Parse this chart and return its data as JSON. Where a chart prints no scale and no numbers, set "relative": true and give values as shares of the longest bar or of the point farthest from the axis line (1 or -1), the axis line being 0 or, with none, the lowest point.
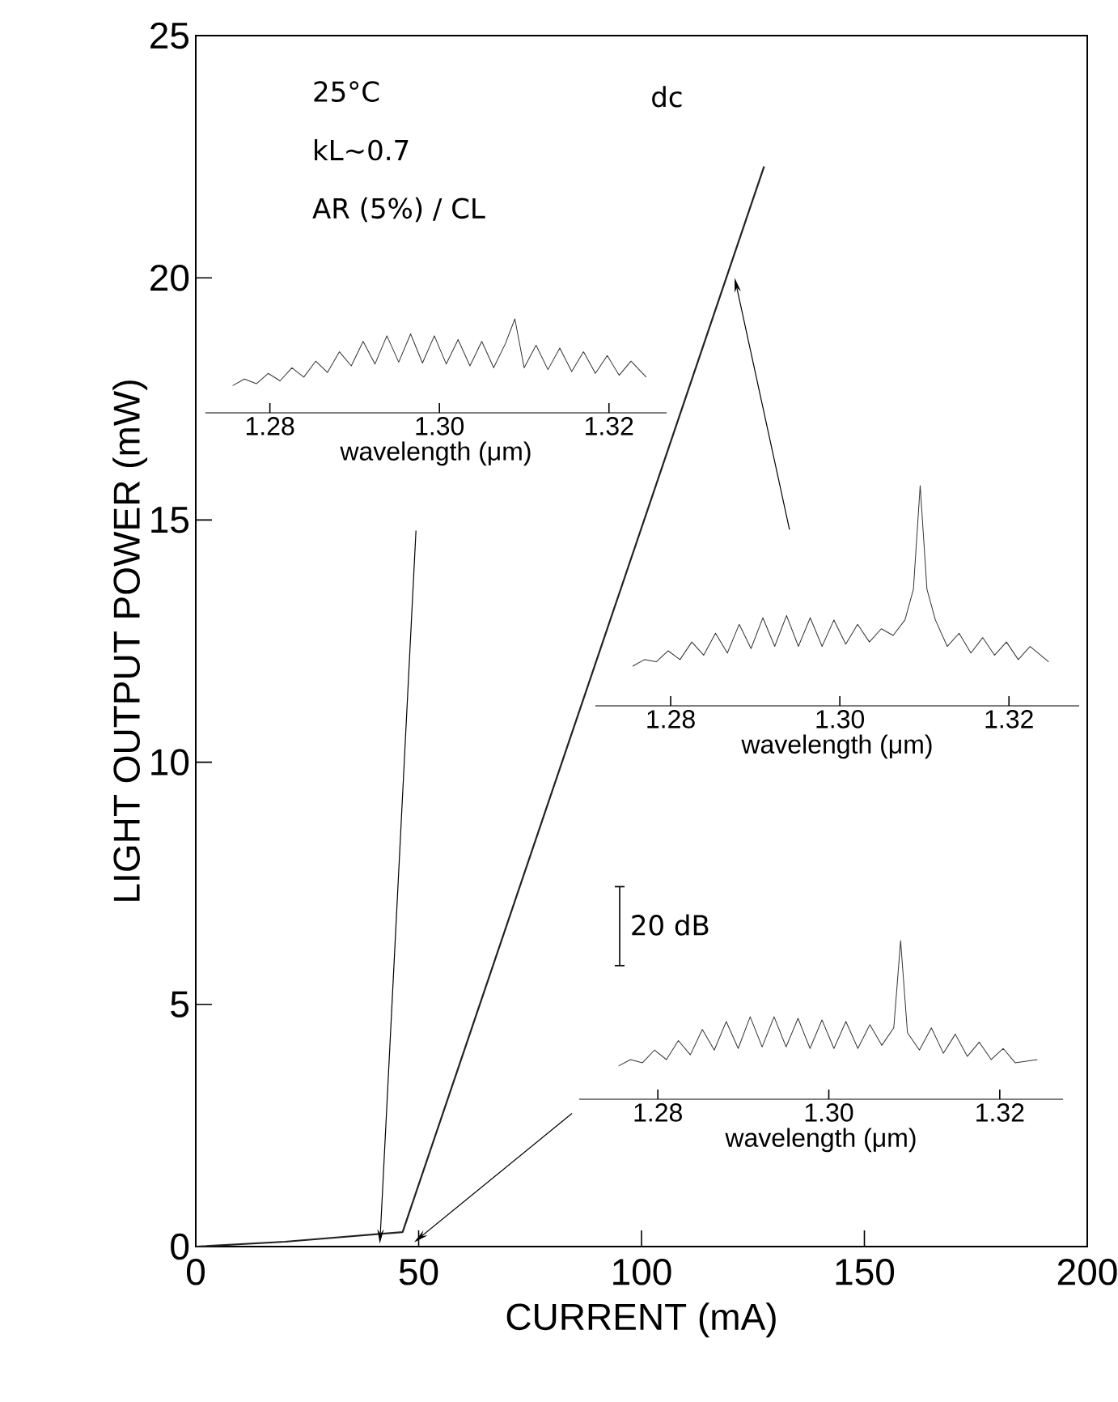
{
  "chart_data": [
    {
      "type": "line",
      "xlabel": "CURRENT  (mA)",
      "ylabel": "LIGHT OUTPUT POWER  (mW)",
      "color": "#222222",
      "x": [
        0,
        20,
        46.4,
        127.5
      ],
      "values": [
        0,
        0.1,
        0.3,
        22.3
      ],
      "xlim": [
        0,
        200
      ],
      "ylim": [
        0,
        25
      ],
      "xticks": [
        0,
        50,
        100,
        150,
        200
      ],
      "yticks": [
        0,
        5,
        10,
        15,
        20,
        25
      ],
      "annotations": [
        "25°C",
        "kL∼0.7",
        "AR  (5%) / CL",
        "dc",
        "20 dB"
      ]
    },
    {
      "type": "line",
      "relative": true,
      "xlabel": "wavelength  (μm)",
      "color": "#333333",
      "tick_labels": "x",
      "xlim": [
        1.2724,
        1.3268
      ],
      "xticks": [
        {
          "value": 1.28,
          "label": "1.28"
        },
        {
          "value": 1.3,
          "label": "1.30"
        },
        {
          "value": 1.32,
          "label": "1.32"
        }
      ],
      "x": [
        1.2756,
        1.277,
        1.2784,
        1.2798,
        1.2812,
        1.2826,
        1.284,
        1.2854,
        1.2868,
        1.2882,
        1.2896,
        1.291,
        1.2924,
        1.2938,
        1.2952,
        1.2966,
        1.298,
        1.2994,
        1.3008,
        1.3022,
        1.3036,
        1.305,
        1.3064,
        1.3078,
        1.3089,
        1.31,
        1.3114,
        1.3128,
        1.3142,
        1.3156,
        1.317,
        1.3184,
        1.3198,
        1.3212,
        1.3226,
        1.3244
      ],
      "values": [
        0.29,
        0.36,
        0.31,
        0.42,
        0.34,
        0.48,
        0.38,
        0.55,
        0.43,
        0.65,
        0.5,
        0.76,
        0.52,
        0.82,
        0.54,
        0.84,
        0.53,
        0.82,
        0.52,
        0.78,
        0.5,
        0.76,
        0.48,
        0.74,
        1,
        0.48,
        0.72,
        0.46,
        0.69,
        0.44,
        0.65,
        0.42,
        0.61,
        0.4,
        0.55,
        0.38
      ]
    },
    {
      "type": "line",
      "relative": true,
      "xlabel": "wavelength  (μm)",
      "color": "#333333",
      "tick_labels": "x",
      "xlim": [
        1.2711,
        1.3283
      ],
      "xticks": [
        {
          "value": 1.28,
          "label": "1.28"
        },
        {
          "value": 1.3,
          "label": "1.30"
        },
        {
          "value": 1.32,
          "label": "1.32"
        }
      ],
      "x": [
        1.2755,
        1.2769,
        1.2783,
        1.2797,
        1.2811,
        1.2825,
        1.2839,
        1.2853,
        1.2867,
        1.2881,
        1.2895,
        1.2909,
        1.2923,
        1.2937,
        1.2951,
        1.2965,
        1.2979,
        1.2993,
        1.3007,
        1.3021,
        1.3035,
        1.3049,
        1.3063,
        1.3077,
        1.3087,
        1.3095,
        1.3103,
        1.3113,
        1.3127,
        1.3141,
        1.3155,
        1.3169,
        1.3183,
        1.3197,
        1.3211,
        1.3225,
        1.3247
      ],
      "values": [
        0.18,
        0.21,
        0.2,
        0.25,
        0.21,
        0.29,
        0.23,
        0.33,
        0.24,
        0.37,
        0.26,
        0.4,
        0.27,
        0.41,
        0.27,
        0.4,
        0.27,
        0.39,
        0.28,
        0.37,
        0.29,
        0.35,
        0.32,
        0.39,
        0.53,
        1,
        0.53,
        0.39,
        0.27,
        0.33,
        0.24,
        0.31,
        0.23,
        0.29,
        0.21,
        0.27,
        0.2
      ]
    },
    {
      "type": "line",
      "relative": true,
      "xlabel": "wavelength  (μm)",
      "color": "#333333",
      "tick_labels": "x",
      "xlim": [
        1.2708,
        1.3274
      ],
      "xticks": [
        {
          "value": 1.28,
          "label": "1.28"
        },
        {
          "value": 1.3,
          "label": "1.30"
        },
        {
          "value": 1.32,
          "label": "1.32"
        }
      ],
      "x": [
        1.2754,
        1.2768,
        1.2782,
        1.2796,
        1.281,
        1.2824,
        1.2838,
        1.2852,
        1.2866,
        1.288,
        1.2894,
        1.2908,
        1.2922,
        1.2936,
        1.295,
        1.2964,
        1.2978,
        1.2992,
        1.3006,
        1.302,
        1.3034,
        1.3048,
        1.3062,
        1.3076,
        1.3084,
        1.3092,
        1.3106,
        1.312,
        1.3134,
        1.3148,
        1.3162,
        1.3176,
        1.319,
        1.3204,
        1.3218,
        1.3244
      ],
      "values": [
        0.21,
        0.25,
        0.23,
        0.31,
        0.25,
        0.37,
        0.28,
        0.44,
        0.31,
        0.49,
        0.32,
        0.52,
        0.33,
        0.52,
        0.33,
        0.51,
        0.32,
        0.5,
        0.32,
        0.49,
        0.32,
        0.47,
        0.34,
        0.45,
        1,
        0.42,
        0.31,
        0.45,
        0.29,
        0.41,
        0.27,
        0.36,
        0.25,
        0.32,
        0.23,
        0.25
      ]
    }
  ]
}
